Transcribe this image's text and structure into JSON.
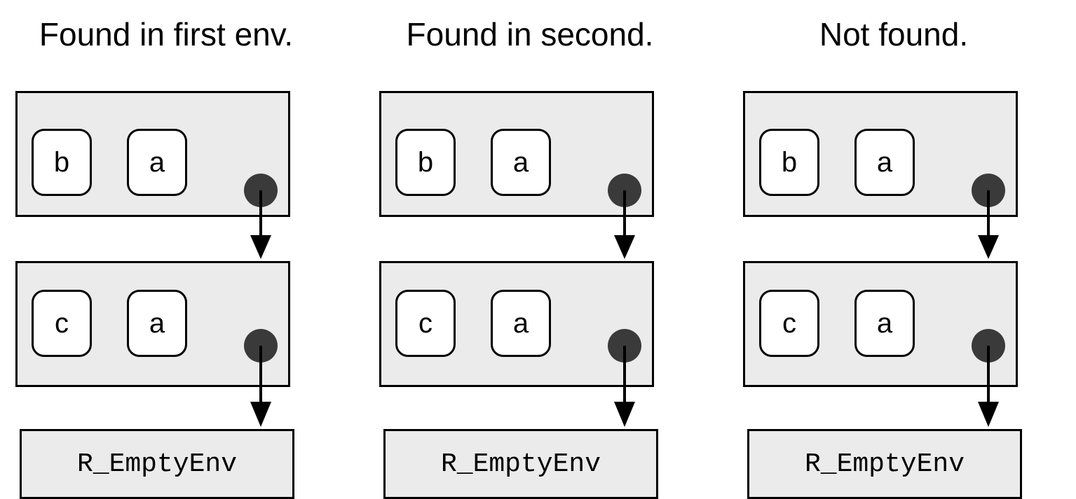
{
  "panels": [
    {
      "title": "Found in first env.",
      "envs": [
        {
          "bindings": [
            "b",
            "a"
          ]
        },
        {
          "bindings": [
            "c",
            "a"
          ]
        }
      ],
      "empty_env_label": "R_EmptyEnv"
    },
    {
      "title": "Found in second.",
      "envs": [
        {
          "bindings": [
            "b",
            "a"
          ]
        },
        {
          "bindings": [
            "c",
            "a"
          ]
        }
      ],
      "empty_env_label": "R_EmptyEnv"
    },
    {
      "title": "Not found.",
      "envs": [
        {
          "bindings": [
            "b",
            "a"
          ]
        },
        {
          "bindings": [
            "c",
            "a"
          ]
        }
      ],
      "empty_env_label": "R_EmptyEnv"
    }
  ],
  "colors": {
    "frame_fill": "#ebebeb",
    "border": "#000000",
    "binding_fill": "#ffffff",
    "parent_dot": "#3a3a3a"
  }
}
